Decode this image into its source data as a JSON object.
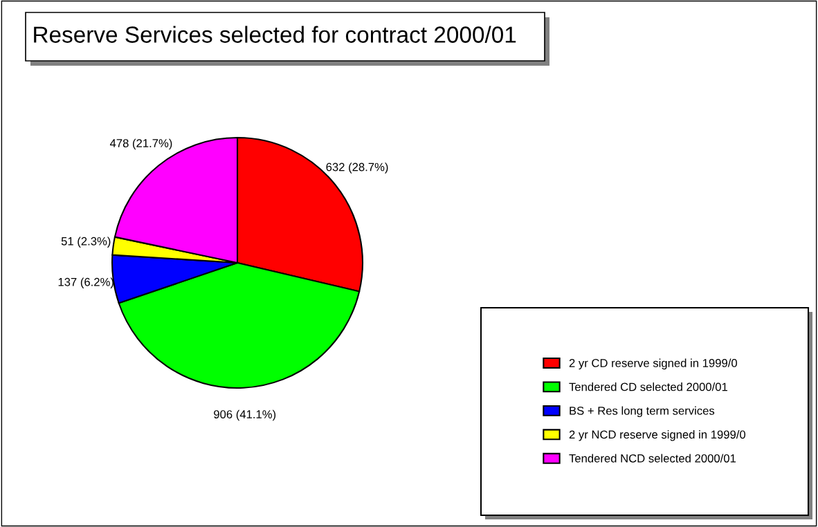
{
  "chart_data": {
    "type": "pie",
    "title": "Reserve Services selected for contract 2000/01",
    "categories": [
      "2 yr CD reserve signed in 1999/0",
      "Tendered CD selected 2000/01",
      "BS + Res long term services",
      "2 yr NCD reserve signed in 1999/0",
      "Tendered NCD selected 2000/01"
    ],
    "values": [
      632,
      906,
      137,
      51,
      478
    ],
    "colors": [
      "#ff0000",
      "#00ff00",
      "#0000ff",
      "#ffff00",
      "#ff00ff"
    ],
    "value_labels": [
      "632 (28.7%)",
      "906 (41.1%)",
      "137 (6.2%)",
      "51 (2.3%)",
      "478 (21.7%)"
    ],
    "legend": "bottom right"
  }
}
